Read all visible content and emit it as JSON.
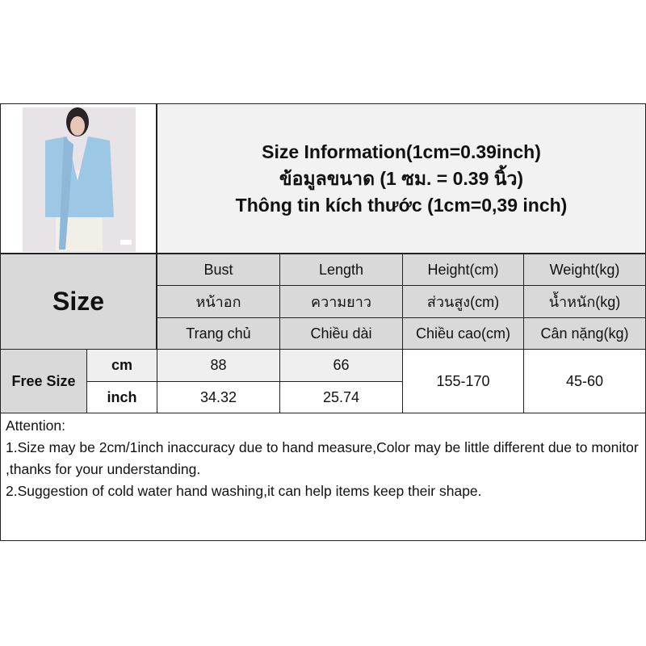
{
  "title": {
    "line1": "Size Information(1cm=0.39inch)",
    "line2": "ข้อมูลขนาด (1 ซม. = 0.39 นิ้ว)",
    "line3": "Thông tin kích thước (1cm=0,39 inch)"
  },
  "size_label": "Size",
  "headers": [
    {
      "en": "Bust",
      "th": "หน้าอก",
      "vi": "Trang chủ"
    },
    {
      "en": "Length",
      "th": "ความยาว",
      "vi": "Chiều dài"
    },
    {
      "en": "Height(cm)",
      "th": "ส่วนสูง(cm)",
      "vi": "Chiều cao(cm)"
    },
    {
      "en": "Weight(kg)",
      "th": "น้ำหนัก(kg)",
      "vi": "Cân nặng(kg)"
    }
  ],
  "row": {
    "size": "Free Size",
    "unit_cm": "cm",
    "unit_inch": "inch",
    "bust_cm": "88",
    "length_cm": "66",
    "bust_inch": "34.32",
    "length_inch": "25.74",
    "height": "155-170",
    "weight": "45-60"
  },
  "attention": {
    "heading": "Attention:",
    "line1": "1.Size may be 2cm/1inch inaccuracy due to hand measure,Color may be little different due to monitor ,thanks for your understanding.",
    "line2": "2.Suggestion of cold water hand washing,it can help items keep their shape."
  },
  "colors": {
    "header_bg": "#d9d9d9",
    "garment": "#9cc8e6"
  }
}
